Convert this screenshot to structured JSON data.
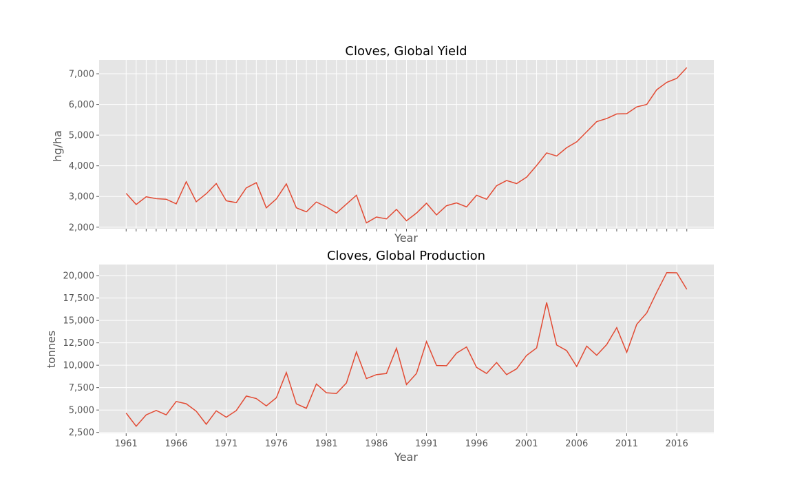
{
  "chart_data": [
    {
      "type": "line",
      "title": "Cloves, Global Yield",
      "xlabel": "Year",
      "ylabel": "hg/ha",
      "xlim": [
        1958.3,
        2019.7
      ],
      "ylim": [
        1950,
        7450
      ],
      "yticks": [
        2000,
        3000,
        4000,
        5000,
        6000,
        7000
      ],
      "yticklabels": [
        "2,000",
        "3,000",
        "4,000",
        "5,000",
        "6,000",
        "7,000"
      ],
      "xticks": [
        1961,
        1962,
        1963,
        1964,
        1965,
        1966,
        1967,
        1968,
        1969,
        1970,
        1971,
        1972,
        1973,
        1974,
        1975,
        1976,
        1977,
        1978,
        1979,
        1980,
        1981,
        1982,
        1983,
        1984,
        1985,
        1986,
        1987,
        1988,
        1989,
        1990,
        1991,
        1992,
        1993,
        1994,
        1995,
        1996,
        1997,
        1998,
        1999,
        2000,
        2001,
        2002,
        2003,
        2004,
        2005,
        2006,
        2007,
        2008,
        2009,
        2010,
        2011,
        2012,
        2013,
        2014,
        2015,
        2016,
        2017
      ],
      "xticklabels": [],
      "grid": true,
      "color": "#e24a33",
      "series": [
        {
          "x": [
            1961,
            1962,
            1963,
            1964,
            1965,
            1966,
            1967,
            1968,
            1969,
            1970,
            1971,
            1972,
            1973,
            1974,
            1975,
            1976,
            1977,
            1978,
            1979,
            1980,
            1981,
            1982,
            1983,
            1984,
            1985,
            1986,
            1987,
            1988,
            1989,
            1990,
            1991,
            1992,
            1993,
            1994,
            1995,
            1996,
            1997,
            1998,
            1999,
            2000,
            2001,
            2002,
            2003,
            2004,
            2005,
            2006,
            2007,
            2008,
            2009,
            2010,
            2011,
            2012,
            2013,
            2014,
            2015,
            2016,
            2017
          ],
          "values": [
            3100,
            2740,
            2990,
            2930,
            2910,
            2760,
            3480,
            2830,
            3090,
            3420,
            2860,
            2800,
            3280,
            3450,
            2630,
            2920,
            3410,
            2630,
            2500,
            2820,
            2660,
            2460,
            2750,
            3040,
            2140,
            2330,
            2270,
            2580,
            2210,
            2460,
            2780,
            2400,
            2700,
            2790,
            2660,
            3040,
            2910,
            3350,
            3520,
            3420,
            3630,
            4010,
            4420,
            4320,
            4590,
            4780,
            5110,
            5440,
            5540,
            5690,
            5700,
            5920,
            6000,
            6480,
            6720,
            6850,
            7200
          ]
        }
      ]
    },
    {
      "type": "line",
      "title": "Cloves, Global Production",
      "xlabel": "Year",
      "ylabel": "tonnes",
      "xlim": [
        1958.3,
        2019.7
      ],
      "ylim": [
        2400,
        21240
      ],
      "yticks": [
        2500,
        5000,
        7500,
        10000,
        12500,
        15000,
        17500,
        20000
      ],
      "yticklabels": [
        "2,500",
        "5,000",
        "7,500",
        "10,000",
        "12,500",
        "15,000",
        "17,500",
        "20,000"
      ],
      "xticks": [
        1961,
        1966,
        1971,
        1976,
        1981,
        1986,
        1991,
        1996,
        2001,
        2006,
        2011,
        2016
      ],
      "xticklabels": [
        "1961",
        "1966",
        "1971",
        "1976",
        "1981",
        "1986",
        "1991",
        "1996",
        "2001",
        "2006",
        "2011",
        "2016"
      ],
      "grid": true,
      "color": "#e24a33",
      "series": [
        {
          "x": [
            1961,
            1962,
            1963,
            1964,
            1965,
            1966,
            1967,
            1968,
            1969,
            1970,
            1971,
            1972,
            1973,
            1974,
            1975,
            1976,
            1977,
            1978,
            1979,
            1980,
            1981,
            1982,
            1983,
            1984,
            1985,
            1986,
            1987,
            1988,
            1989,
            1990,
            1991,
            1992,
            1993,
            1994,
            1995,
            1996,
            1997,
            1998,
            1999,
            2000,
            2001,
            2002,
            2003,
            2004,
            2005,
            2006,
            2007,
            2008,
            2009,
            2010,
            2011,
            2012,
            2013,
            2014,
            2015,
            2016,
            2017
          ],
          "values": [
            4660,
            3190,
            4460,
            4950,
            4460,
            5950,
            5700,
            4870,
            3410,
            4910,
            4200,
            4940,
            6560,
            6280,
            5460,
            6370,
            9190,
            5690,
            5190,
            7910,
            6930,
            6840,
            8020,
            11480,
            8510,
            8950,
            9080,
            11900,
            7840,
            9080,
            12640,
            9970,
            9950,
            11350,
            12040,
            9760,
            9080,
            10300,
            8950,
            9600,
            11100,
            11930,
            17010,
            12260,
            11630,
            9860,
            12130,
            11110,
            12310,
            14190,
            11440,
            14570,
            15840,
            18160,
            20340,
            20320,
            18470
          ]
        }
      ]
    }
  ]
}
